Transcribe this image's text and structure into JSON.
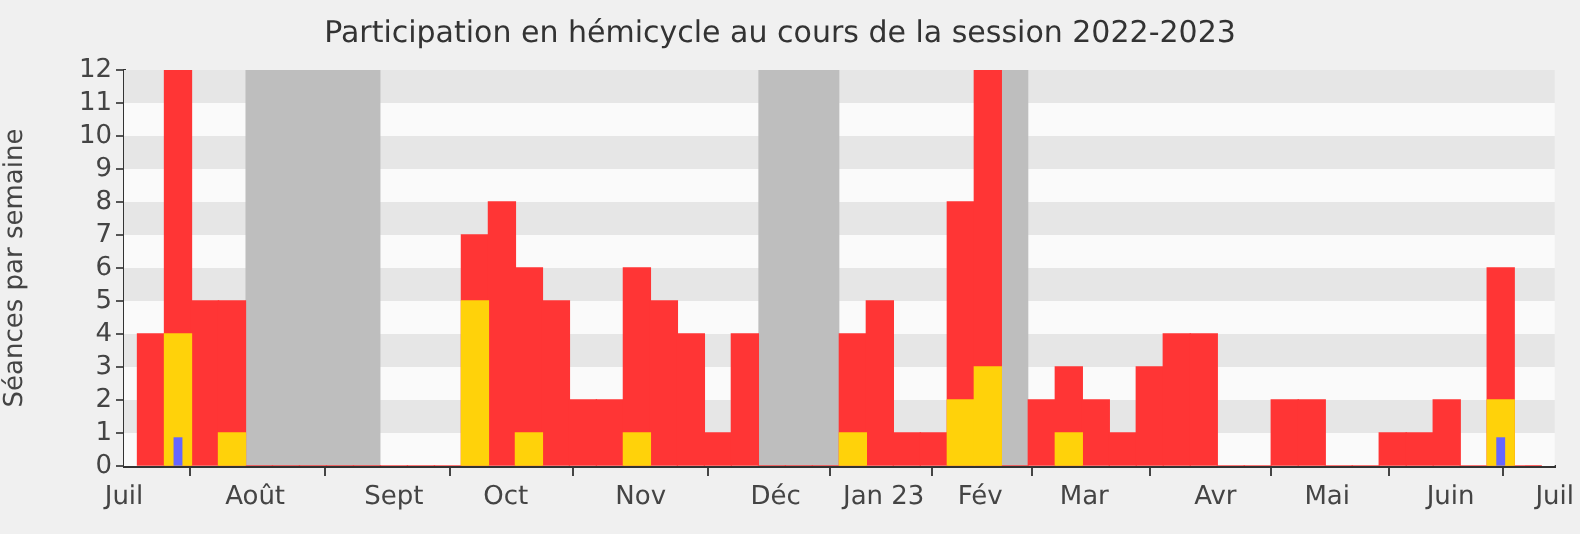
{
  "chart_data": {
    "type": "bar",
    "title": "Participation en hémicycle au cours de la session 2022-2023",
    "ylabel": "Séances par semaine",
    "x": [
      "2022-07-04",
      "2022-07-11",
      "2022-07-18",
      "2022-07-25",
      "2022-08-01",
      "2022-08-08",
      "2022-08-15",
      "2022-08-22",
      "2022-08-29",
      "2022-09-05",
      "2022-09-12",
      "2022-09-19",
      "2022-09-26",
      "2022-10-03",
      "2022-10-10",
      "2022-10-17",
      "2022-10-24",
      "2022-10-31",
      "2022-11-07",
      "2022-11-14",
      "2022-11-21",
      "2022-11-28",
      "2022-12-05",
      "2022-12-12",
      "2022-12-19",
      "2022-12-26",
      "2023-01-02",
      "2023-01-09",
      "2023-01-16",
      "2023-01-23",
      "2023-01-30",
      "2023-02-06",
      "2023-02-13",
      "2023-02-20",
      "2023-02-27",
      "2023-03-06",
      "2023-03-13",
      "2023-03-20",
      "2023-03-27",
      "2023-04-03",
      "2023-04-10",
      "2023-04-17",
      "2023-04-24",
      "2023-05-01",
      "2023-05-08",
      "2023-05-15",
      "2023-05-22",
      "2023-05-29",
      "2023-06-05",
      "2023-06-12",
      "2023-06-19",
      "2023-06-26"
    ],
    "series": [
      {
        "color": "#ff3535",
        "values": [
          4,
          12,
          5,
          5,
          0,
          0,
          0,
          0,
          0,
          0,
          0,
          0,
          7,
          8,
          6,
          5,
          2,
          2,
          6,
          5,
          4,
          1,
          4,
          0,
          0,
          0,
          4,
          5,
          1,
          1,
          8,
          12,
          0,
          2,
          3,
          2,
          1,
          3,
          4,
          4,
          0,
          0,
          2,
          2,
          0,
          0,
          1,
          1,
          2,
          0,
          6,
          0
        ]
      },
      {
        "color": "#ffd20a",
        "values": [
          null,
          4,
          null,
          1,
          null,
          null,
          null,
          null,
          null,
          null,
          null,
          null,
          5,
          null,
          1,
          null,
          null,
          null,
          1,
          null,
          null,
          null,
          null,
          null,
          null,
          null,
          1,
          null,
          null,
          null,
          2,
          3,
          null,
          null,
          1,
          null,
          null,
          null,
          null,
          null,
          null,
          null,
          null,
          null,
          null,
          null,
          null,
          null,
          null,
          null,
          2,
          null
        ]
      },
      {
        "color": "#6666ff",
        "values": [
          null,
          0.85,
          null,
          null,
          null,
          null,
          null,
          null,
          null,
          null,
          null,
          null,
          null,
          null,
          null,
          null,
          null,
          null,
          null,
          null,
          null,
          null,
          null,
          null,
          null,
          null,
          null,
          null,
          null,
          null,
          null,
          null,
          null,
          null,
          null,
          null,
          null,
          null,
          null,
          null,
          null,
          null,
          null,
          null,
          null,
          null,
          null,
          null,
          null,
          null,
          0.85,
          null
        ]
      }
    ],
    "xlim": [
      "2022-06-27",
      "2023-07-03"
    ],
    "xticks": [
      {
        "value": "2022-06-27",
        "label": "Juil"
      },
      {
        "value": "2022-07-31",
        "label": "Août"
      },
      {
        "value": "2022-09-05",
        "label": "Sept"
      },
      {
        "value": "2022-10-04",
        "label": "Oct"
      },
      {
        "value": "2022-11-08",
        "label": "Nov"
      },
      {
        "value": "2022-12-13",
        "label": "Déc"
      },
      {
        "value": "2023-01-10",
        "label": "Jan 23"
      },
      {
        "value": "2023-02-04",
        "label": "Fév"
      },
      {
        "value": "2023-03-03",
        "label": "Mar"
      },
      {
        "value": "2023-04-06",
        "label": "Avr"
      },
      {
        "value": "2023-05-05",
        "label": "Mai"
      },
      {
        "value": "2023-06-06",
        "label": "Juin"
      },
      {
        "value": "2023-07-03",
        "label": "Juil"
      }
    ],
    "ylim": [
      0,
      12
    ],
    "yticks": [
      0,
      1,
      2,
      3,
      4,
      5,
      6,
      7,
      8,
      9,
      10,
      11,
      12
    ],
    "bands": [
      {
        "axis": "x",
        "from": "2022-07-28T12:00",
        "to": "2022-09-01T12:00",
        "color": "#bebebe"
      },
      {
        "axis": "x",
        "from": "2022-12-08T12:00",
        "to": "2022-12-29T12:00",
        "color": "#bebebe"
      },
      {
        "axis": "x",
        "from": "2023-02-09T12:00",
        "to": "2023-02-16T12:00",
        "color": "#bebebe"
      }
    ],
    "legend": false
  }
}
